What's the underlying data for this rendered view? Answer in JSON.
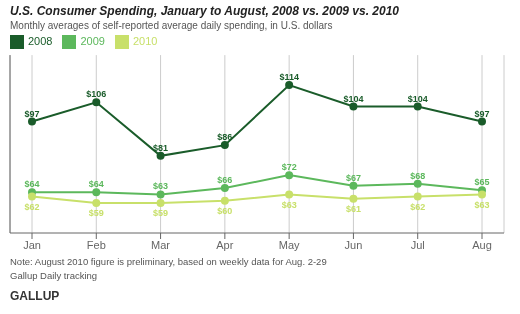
{
  "chart_data": {
    "type": "line",
    "title": "U.S. Consumer Spending, January to August, 2008 vs. 2009 vs. 2010",
    "subtitle": "Monthly averages of self-reported average daily spending, in U.S. dollars",
    "categories": [
      "Jan",
      "Feb",
      "Mar",
      "Apr",
      "May",
      "Jun",
      "Jul",
      "Aug"
    ],
    "series": [
      {
        "name": "2008",
        "color": "#1a5c2a",
        "marker": "circle",
        "values": [
          97,
          106,
          81,
          86,
          114,
          104,
          104,
          97
        ],
        "value_labels": [
          "$97",
          "$106",
          "$81",
          "$86",
          "$114",
          "$104",
          "$104",
          "$97"
        ]
      },
      {
        "name": "2009",
        "color": "#5cb85c",
        "marker": "circle",
        "values": [
          64,
          64,
          63,
          66,
          72,
          67,
          68,
          65
        ],
        "value_labels": [
          "$64",
          "$64",
          "$63",
          "$66",
          "$72",
          "$67",
          "$68",
          "$65"
        ]
      },
      {
        "name": "2010",
        "color": "#c8e06a",
        "marker": "circle",
        "values": [
          62,
          59,
          59,
          60,
          63,
          61,
          62,
          63
        ],
        "value_labels": [
          "$62",
          "$59",
          "$59",
          "$60",
          "$63",
          "$61",
          "$62",
          "$63"
        ]
      }
    ],
    "ylim": [
      45,
      128
    ],
    "grid": "x",
    "legend": "top-left",
    "data_labels": true,
    "tick_labels": "x",
    "annotations": [
      "Note: August 2010 figure is preliminary, based on weekly data for Aug. 2-29",
      "Gallup Daily tracking"
    ],
    "footer": "GALLUP"
  }
}
